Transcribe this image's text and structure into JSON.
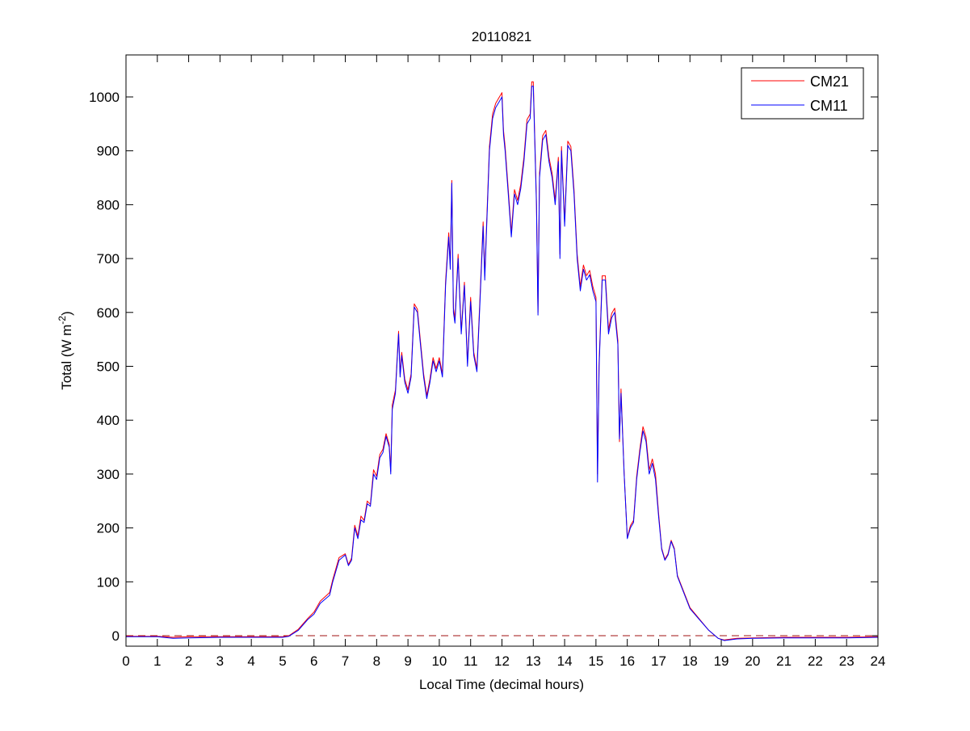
{
  "chart_data": {
    "type": "line",
    "title": "20110821",
    "xlabel": "Local Time (decimal hours)",
    "ylabel": "Total (W m-2)",
    "ylabel_parts": {
      "main": "Total (W m",
      "sup": "-2",
      "close": ")"
    },
    "xlim": [
      0,
      24
    ],
    "ylim": [
      -20,
      1078
    ],
    "xticks": [
      0,
      1,
      2,
      3,
      4,
      5,
      6,
      7,
      8,
      9,
      10,
      11,
      12,
      13,
      14,
      15,
      16,
      17,
      18,
      19,
      20,
      21,
      22,
      23,
      24
    ],
    "yticks": [
      0,
      100,
      200,
      300,
      400,
      500,
      600,
      700,
      800,
      900,
      1000
    ],
    "grid": false,
    "legend_position": "top-right",
    "reference_line": {
      "y": 0,
      "style": "dashed",
      "color": "#a01010"
    },
    "x": [
      0,
      1,
      1.5,
      2,
      3,
      4,
      5,
      5.2,
      5.5,
      5.8,
      6,
      6.2,
      6.5,
      6.6,
      6.8,
      7,
      7.1,
      7.2,
      7.3,
      7.4,
      7.5,
      7.6,
      7.7,
      7.8,
      7.9,
      8,
      8.1,
      8.2,
      8.3,
      8.4,
      8.45,
      8.5,
      8.6,
      8.7,
      8.75,
      8.8,
      8.9,
      9,
      9.1,
      9.2,
      9.3,
      9.4,
      9.5,
      9.6,
      9.7,
      9.8,
      9.9,
      10,
      10.1,
      10.2,
      10.3,
      10.35,
      10.4,
      10.45,
      10.5,
      10.6,
      10.7,
      10.8,
      10.9,
      11,
      11.1,
      11.2,
      11.3,
      11.4,
      11.45,
      11.5,
      11.6,
      11.7,
      11.8,
      11.9,
      12,
      12.05,
      12.1,
      12.2,
      12.3,
      12.4,
      12.5,
      12.6,
      12.7,
      12.8,
      12.9,
      12.95,
      13,
      13.1,
      13.15,
      13.2,
      13.3,
      13.4,
      13.5,
      13.6,
      13.7,
      13.8,
      13.85,
      13.9,
      14,
      14.1,
      14.2,
      14.3,
      14.4,
      14.5,
      14.6,
      14.7,
      14.8,
      14.9,
      15,
      15.05,
      15.1,
      15.2,
      15.3,
      15.4,
      15.5,
      15.6,
      15.7,
      15.75,
      15.8,
      15.9,
      16,
      16.1,
      16.2,
      16.3,
      16.4,
      16.5,
      16.6,
      16.7,
      16.8,
      16.9,
      17,
      17.1,
      17.2,
      17.3,
      17.4,
      17.5,
      17.6,
      17.8,
      18,
      18.3,
      18.6,
      18.9,
      19.1,
      19.5,
      20,
      21,
      22,
      23,
      24
    ],
    "series": [
      {
        "name": "CM21",
        "color": "#ff0000",
        "values": [
          -1,
          -1,
          -3,
          -2,
          -2,
          -2,
          -2,
          0,
          12,
          32,
          44,
          64,
          80,
          104,
          145,
          152,
          132,
          144,
          205,
          185,
          222,
          214,
          250,
          244,
          308,
          296,
          336,
          346,
          375,
          355,
          305,
          428,
          456,
          565,
          486,
          526,
          476,
          456,
          486,
          616,
          606,
          546,
          486,
          446,
          476,
          516,
          496,
          516,
          486,
          658,
          748,
          688,
          845,
          608,
          588,
          708,
          566,
          656,
          506,
          628,
          526,
          496,
          628,
          768,
          668,
          748,
          908,
          968,
          988,
          998,
          1008,
          938,
          908,
          828,
          748,
          828,
          808,
          838,
          888,
          958,
          968,
          1028,
          1028,
          808,
          600,
          858,
          928,
          938,
          888,
          858,
          808,
          888,
          708,
          908,
          768,
          918,
          908,
          828,
          708,
          648,
          688,
          668,
          678,
          648,
          628,
          300,
          508,
          668,
          668,
          568,
          598,
          608,
          548,
          360,
          458,
          300,
          182,
          204,
          214,
          296,
          346,
          388,
          368,
          308,
          328,
          300,
          226,
          162,
          142,
          152,
          177,
          162,
          112,
          82,
          52,
          31,
          10,
          -5,
          -8,
          -5,
          -4,
          -3,
          -3,
          -3,
          -2
        ]
      },
      {
        "name": "CM11",
        "color": "#0000ff",
        "values": [
          -2,
          -2,
          -5,
          -4,
          -3,
          -3,
          -3,
          -1,
          10,
          30,
          40,
          60,
          75,
          100,
          140,
          150,
          130,
          140,
          200,
          180,
          215,
          210,
          245,
          240,
          300,
          290,
          330,
          340,
          370,
          350,
          300,
          420,
          450,
          560,
          480,
          520,
          470,
          450,
          480,
          610,
          600,
          540,
          480,
          440,
          470,
          510,
          490,
          510,
          480,
          650,
          740,
          680,
          840,
          600,
          580,
          700,
          560,
          650,
          500,
          620,
          520,
          490,
          620,
          760,
          660,
          740,
          900,
          960,
          980,
          990,
          1000,
          930,
          900,
          820,
          740,
          820,
          800,
          830,
          880,
          950,
          960,
          1020,
          1020,
          800,
          595,
          850,
          920,
          930,
          880,
          850,
          800,
          880,
          700,
          900,
          760,
          910,
          900,
          820,
          700,
          640,
          680,
          660,
          670,
          640,
          620,
          285,
          500,
          660,
          660,
          560,
          590,
          600,
          540,
          365,
          450,
          300,
          180,
          200,
          210,
          290,
          340,
          380,
          360,
          300,
          320,
          290,
          220,
          160,
          140,
          150,
          175,
          160,
          110,
          80,
          50,
          30,
          10,
          -5,
          -9,
          -6,
          -5,
          -4,
          -4,
          -4,
          -3
        ]
      }
    ]
  }
}
